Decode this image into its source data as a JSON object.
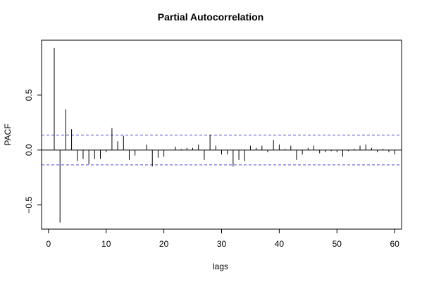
{
  "chart_data": {
    "type": "bar",
    "title": "Partial Autocorrelation",
    "xlabel": "lags",
    "ylabel": "PACF",
    "xlim": [
      -1.2,
      61.2
    ],
    "ylim": [
      -0.72,
      1.0
    ],
    "x_ticks": [
      0,
      10,
      20,
      30,
      40,
      50,
      60
    ],
    "y_ticks": [
      -0.5,
      0.0,
      0.5
    ],
    "y_tick_labels": [
      "−0.5",
      "0.0",
      "0.5"
    ],
    "confidence_bound": 0.135,
    "grid": false,
    "colors": {
      "bars": "#000000",
      "zero_line": "#000000",
      "bounds": "#4b4bd6"
    },
    "lags": [
      1,
      2,
      3,
      4,
      5,
      6,
      7,
      8,
      9,
      10,
      11,
      12,
      13,
      14,
      15,
      16,
      17,
      18,
      19,
      20,
      21,
      22,
      23,
      24,
      25,
      26,
      27,
      28,
      29,
      30,
      31,
      32,
      33,
      34,
      35,
      36,
      37,
      38,
      39,
      40,
      41,
      42,
      43,
      44,
      45,
      46,
      47,
      48,
      49,
      50,
      51,
      52,
      53,
      54,
      55,
      56,
      57,
      58,
      59,
      60
    ],
    "values": [
      0.93,
      -0.66,
      0.37,
      0.19,
      -0.1,
      -0.08,
      -0.13,
      -0.08,
      -0.08,
      -0.02,
      0.2,
      0.08,
      0.13,
      -0.09,
      -0.05,
      0.0,
      0.05,
      -0.15,
      -0.07,
      -0.06,
      0.0,
      0.03,
      0.01,
      0.02,
      0.02,
      0.05,
      -0.09,
      0.14,
      0.04,
      -0.04,
      -0.04,
      -0.15,
      -0.09,
      -0.1,
      0.04,
      0.02,
      0.04,
      -0.02,
      0.09,
      0.05,
      0.01,
      0.04,
      -0.09,
      -0.04,
      0.02,
      0.04,
      -0.03,
      -0.02,
      -0.01,
      -0.02,
      -0.06,
      -0.01,
      0.01,
      0.04,
      0.05,
      0.02,
      -0.02,
      0.01,
      -0.02,
      -0.04
    ]
  }
}
